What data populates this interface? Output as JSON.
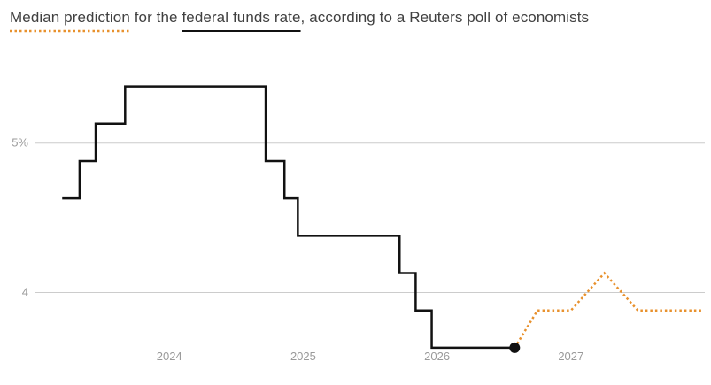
{
  "title_parts": {
    "p1": "Median prediction",
    "p2": " for the ",
    "p3": "federal funds rate",
    "p4": ", according to a Reuters poll of economists"
  },
  "colors": {
    "actual": "#111111",
    "forecast": "#e8912d",
    "grid": "#cccccc",
    "tick_text": "#9a9a9a",
    "title_text": "#404040"
  },
  "chart_data": {
    "type": "line",
    "title": "Median prediction for the federal funds rate, according to a Reuters poll of economists",
    "xlabel": "",
    "ylabel": "",
    "grid": true,
    "xlim": [
      2023.0,
      2028.0
    ],
    "ylim": [
      3.6,
      5.65
    ],
    "y_ticks": [
      {
        "value": 4.0,
        "label": "4"
      },
      {
        "value": 5.0,
        "label": "5%"
      }
    ],
    "x_ticks": [
      {
        "value": 2024.0,
        "label": "2024"
      },
      {
        "value": 2025.0,
        "label": "2025"
      },
      {
        "value": 2026.0,
        "label": "2026"
      },
      {
        "value": 2027.0,
        "label": "2027"
      }
    ],
    "series": [
      {
        "name": "federal funds rate",
        "style": "step-solid",
        "points": [
          [
            2023.2,
            4.63
          ],
          [
            2023.33,
            4.88
          ],
          [
            2023.45,
            5.13
          ],
          [
            2023.67,
            5.38
          ],
          [
            2024.72,
            4.88
          ],
          [
            2024.86,
            4.63
          ],
          [
            2024.96,
            4.38
          ],
          [
            2025.72,
            4.13
          ],
          [
            2025.84,
            3.88
          ],
          [
            2025.96,
            3.63
          ],
          [
            2026.58,
            3.63
          ]
        ],
        "end_marker": true
      },
      {
        "name": "Median prediction",
        "style": "dotted",
        "points": [
          [
            2026.58,
            3.63
          ],
          [
            2026.75,
            3.88
          ],
          [
            2027.0,
            3.88
          ],
          [
            2027.25,
            4.13
          ],
          [
            2027.5,
            3.88
          ],
          [
            2027.98,
            3.88
          ]
        ]
      }
    ]
  }
}
